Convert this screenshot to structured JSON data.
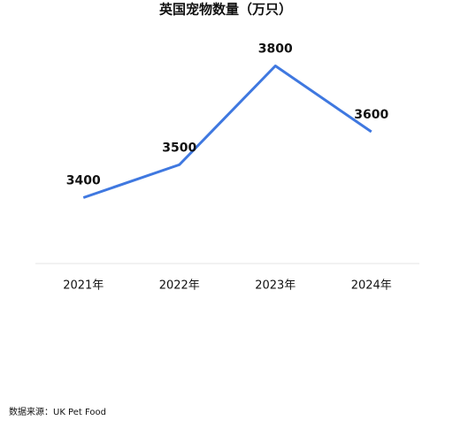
{
  "chart_data": {
    "type": "line",
    "title": "英国宠物数量（万只）",
    "categories": [
      "2021年",
      "2022年",
      "2023年",
      "2024年"
    ],
    "series": [
      {
        "name": "宠物数量",
        "color": "#3f78e0",
        "values": [
          3400,
          3500,
          3800,
          3600
        ]
      }
    ],
    "ylim": [
      3200,
      4000
    ],
    "grid": false
  },
  "footer": {
    "source": "数据来源：UK Pet Food"
  }
}
